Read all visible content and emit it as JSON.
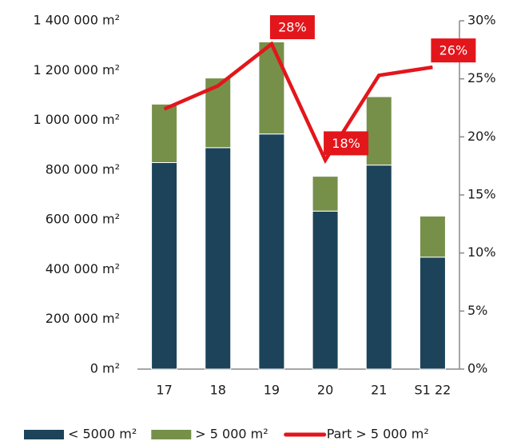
{
  "chart_data": {
    "type": "bar",
    "stacked": true,
    "categories": [
      "17",
      "18",
      "19",
      "20",
      "21",
      "S1 22"
    ],
    "series": [
      {
        "name": "< 5000 m²",
        "color": "#1c4359",
        "values": [
          830000,
          890000,
          945000,
          635000,
          820000,
          450000
        ]
      },
      {
        "name": "> 5 000 m²",
        "color": "#76904a",
        "values": [
          235000,
          280000,
          370000,
          140000,
          275000,
          165000
        ]
      },
      {
        "name": "Part > 5 000 m²",
        "type": "line",
        "axis": "y2",
        "color": "#e3161b",
        "values": [
          22.4,
          24.4,
          28,
          18,
          25.3,
          26
        ],
        "value_labels": [
          null,
          null,
          "28%",
          "18%",
          null,
          "26%"
        ]
      }
    ],
    "ylim": [
      0,
      1400000
    ],
    "yticks": [
      {
        "value": 0,
        "label": "0 m²"
      },
      {
        "value": 200000,
        "label": "200 000 m²"
      },
      {
        "value": 400000,
        "label": "400 000 m²"
      },
      {
        "value": 600000,
        "label": "600 000 m²"
      },
      {
        "value": 800000,
        "label": "800 000 m²"
      },
      {
        "value": 1000000,
        "label": "1 000 000 m²"
      },
      {
        "value": 1200000,
        "label": "1 200 000 m²"
      },
      {
        "value": 1400000,
        "label": "1 400 000 m²"
      }
    ],
    "y2lim": [
      0,
      30
    ],
    "y2ticks": [
      {
        "value": 0,
        "label": "0%"
      },
      {
        "value": 5,
        "label": "5%"
      },
      {
        "value": 10,
        "label": "10%"
      },
      {
        "value": 15,
        "label": "15%"
      },
      {
        "value": 20,
        "label": "20%"
      },
      {
        "value": 25,
        "label": "25%"
      },
      {
        "value": 30,
        "label": "30%"
      }
    ],
    "grid": false,
    "legend": "bottom"
  }
}
